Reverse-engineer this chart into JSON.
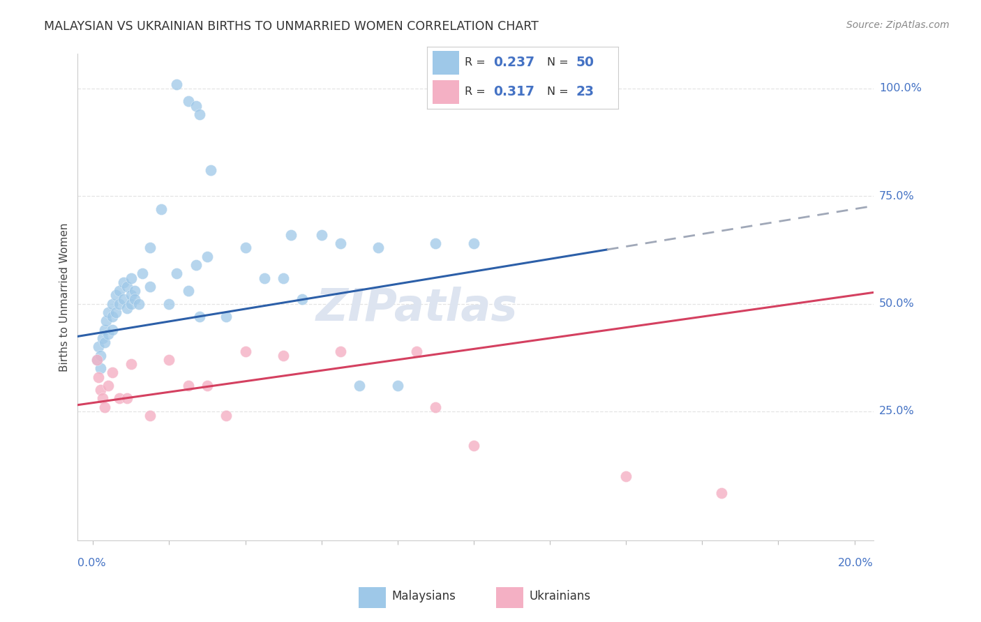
{
  "title": "MALAYSIAN VS UKRAINIAN BIRTHS TO UNMARRIED WOMEN CORRELATION CHART",
  "source": "Source: ZipAtlas.com",
  "ylabel": "Births to Unmarried Women",
  "blue_scatter_color": "#9ec8e8",
  "pink_scatter_color": "#f4b0c4",
  "blue_line_color": "#2c5fa8",
  "pink_line_color": "#d44060",
  "gray_dash_color": "#a0a8b8",
  "axis_label_color": "#4472c4",
  "grid_color": "#e4e4e4",
  "text_color": "#444444",
  "background": "#ffffff",
  "watermark_text": "ZIPatlas",
  "watermark_color": "#dde4f0",
  "legend_r1": "0.237",
  "legend_n1": "50",
  "legend_r2": "0.317",
  "legend_n2": "23",
  "mal_x": [
    0.1,
    0.15,
    0.2,
    0.2,
    0.25,
    0.3,
    0.3,
    0.35,
    0.4,
    0.4,
    0.5,
    0.5,
    0.5,
    0.6,
    0.6,
    0.7,
    0.7,
    0.8,
    0.8,
    0.9,
    0.9,
    1.0,
    1.0,
    1.0,
    1.1,
    1.1,
    1.2,
    1.3,
    1.5,
    1.5,
    1.8,
    2.0,
    2.2,
    2.5,
    2.7,
    2.8,
    3.0,
    3.5,
    4.0,
    4.5,
    5.0,
    5.2,
    5.5,
    6.0,
    6.5,
    7.0,
    7.5,
    8.0,
    9.0,
    10.0
  ],
  "mal_y": [
    37,
    40,
    35,
    38,
    42,
    41,
    44,
    46,
    43,
    48,
    50,
    47,
    44,
    52,
    48,
    53,
    50,
    55,
    51,
    54,
    49,
    56,
    52,
    50,
    53,
    51,
    50,
    57,
    54,
    63,
    72,
    50,
    57,
    53,
    59,
    47,
    61,
    47,
    63,
    56,
    56,
    66,
    51,
    66,
    64,
    31,
    63,
    31,
    64,
    64
  ],
  "mal_x_top": [
    2.2,
    2.5,
    2.7,
    2.8,
    3.1
  ],
  "mal_y_top": [
    101,
    97,
    96,
    94,
    81
  ],
  "ukr_x": [
    0.1,
    0.15,
    0.2,
    0.25,
    0.3,
    0.4,
    0.5,
    0.7,
    0.9,
    1.0,
    1.5,
    2.0,
    2.5,
    3.0,
    3.5,
    4.0,
    5.0,
    6.5,
    8.5,
    9.0,
    10.0,
    14.0,
    16.5
  ],
  "ukr_y": [
    37,
    33,
    30,
    28,
    26,
    31,
    34,
    28,
    28,
    36,
    24,
    37,
    31,
    31,
    24,
    39,
    38,
    39,
    39,
    26,
    17,
    10,
    6
  ],
  "xlim_left": -0.4,
  "xlim_right": 20.5,
  "ylim_bottom": -5,
  "ylim_top": 108,
  "y_ticks": [
    25,
    50,
    75,
    100
  ],
  "trend_mal_x0": 0,
  "trend_mal_y0": 43,
  "trend_mal_x1": 20,
  "trend_mal_y1": 72,
  "trend_ukr_x0": 0,
  "trend_ukr_y0": 27,
  "trend_ukr_x1": 20,
  "trend_ukr_y1": 52,
  "solid_end_x": 13.5
}
